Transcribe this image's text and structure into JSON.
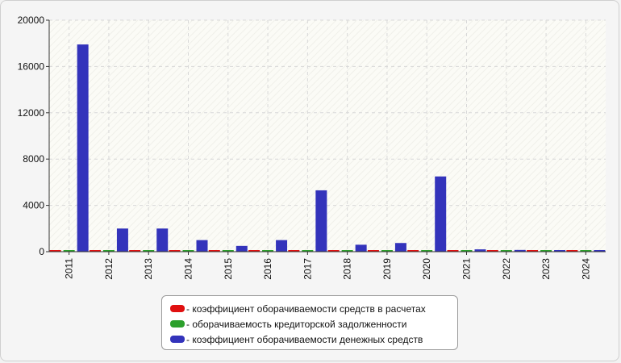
{
  "chart_data": {
    "type": "bar",
    "title": "",
    "xlabel": "",
    "ylabel": "",
    "categories": [
      "2011",
      "2012",
      "2013",
      "2014",
      "2015",
      "2016",
      "2017",
      "2018",
      "2019",
      "2020",
      "2021",
      "2022",
      "2023",
      "2024"
    ],
    "ylim": [
      0,
      20000
    ],
    "yticks": [
      0,
      4000,
      8000,
      12000,
      16000,
      20000
    ],
    "grid": true,
    "legend_position": "bottom",
    "series": [
      {
        "name": "- коэффициент оборачиваемости средств в расчетах",
        "color": "#e01010",
        "values": [
          5,
          5,
          5,
          5,
          5,
          5,
          5,
          5,
          5,
          5,
          5,
          5,
          5,
          5
        ]
      },
      {
        "name": "- оборачиваемость кредиторской задолженности",
        "color": "#2ca02c",
        "values": [
          5,
          5,
          5,
          5,
          5,
          5,
          5,
          5,
          5,
          5,
          5,
          5,
          5,
          5
        ]
      },
      {
        "name": "- коэффициент оборачиваемости денежных средств",
        "color": "#3333bb",
        "values": [
          17900,
          2000,
          2000,
          1000,
          500,
          1000,
          5300,
          600,
          750,
          6500,
          200,
          150,
          60,
          40
        ]
      }
    ]
  }
}
